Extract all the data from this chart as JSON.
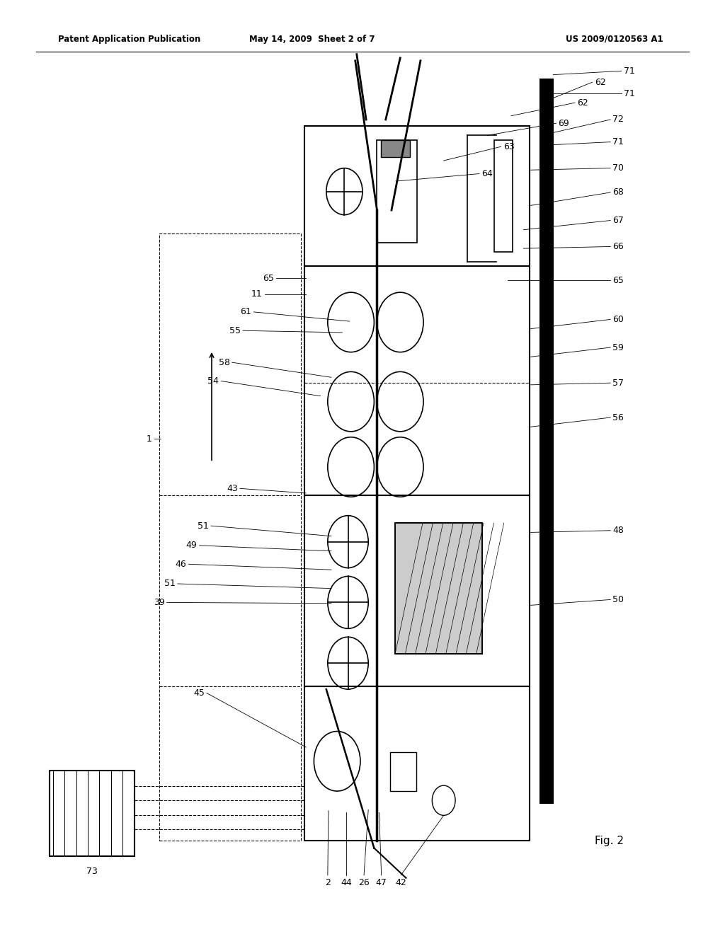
{
  "title_left": "Patent Application Publication",
  "title_center": "May 14, 2009  Sheet 2 of 7",
  "title_right": "US 2009/0120563 A1",
  "fig_label": "Fig. 2",
  "bg_color": "#ffffff",
  "line_color": "#000000",
  "diagram": {
    "label_font_size": 9,
    "header_font_size": 8.5
  }
}
